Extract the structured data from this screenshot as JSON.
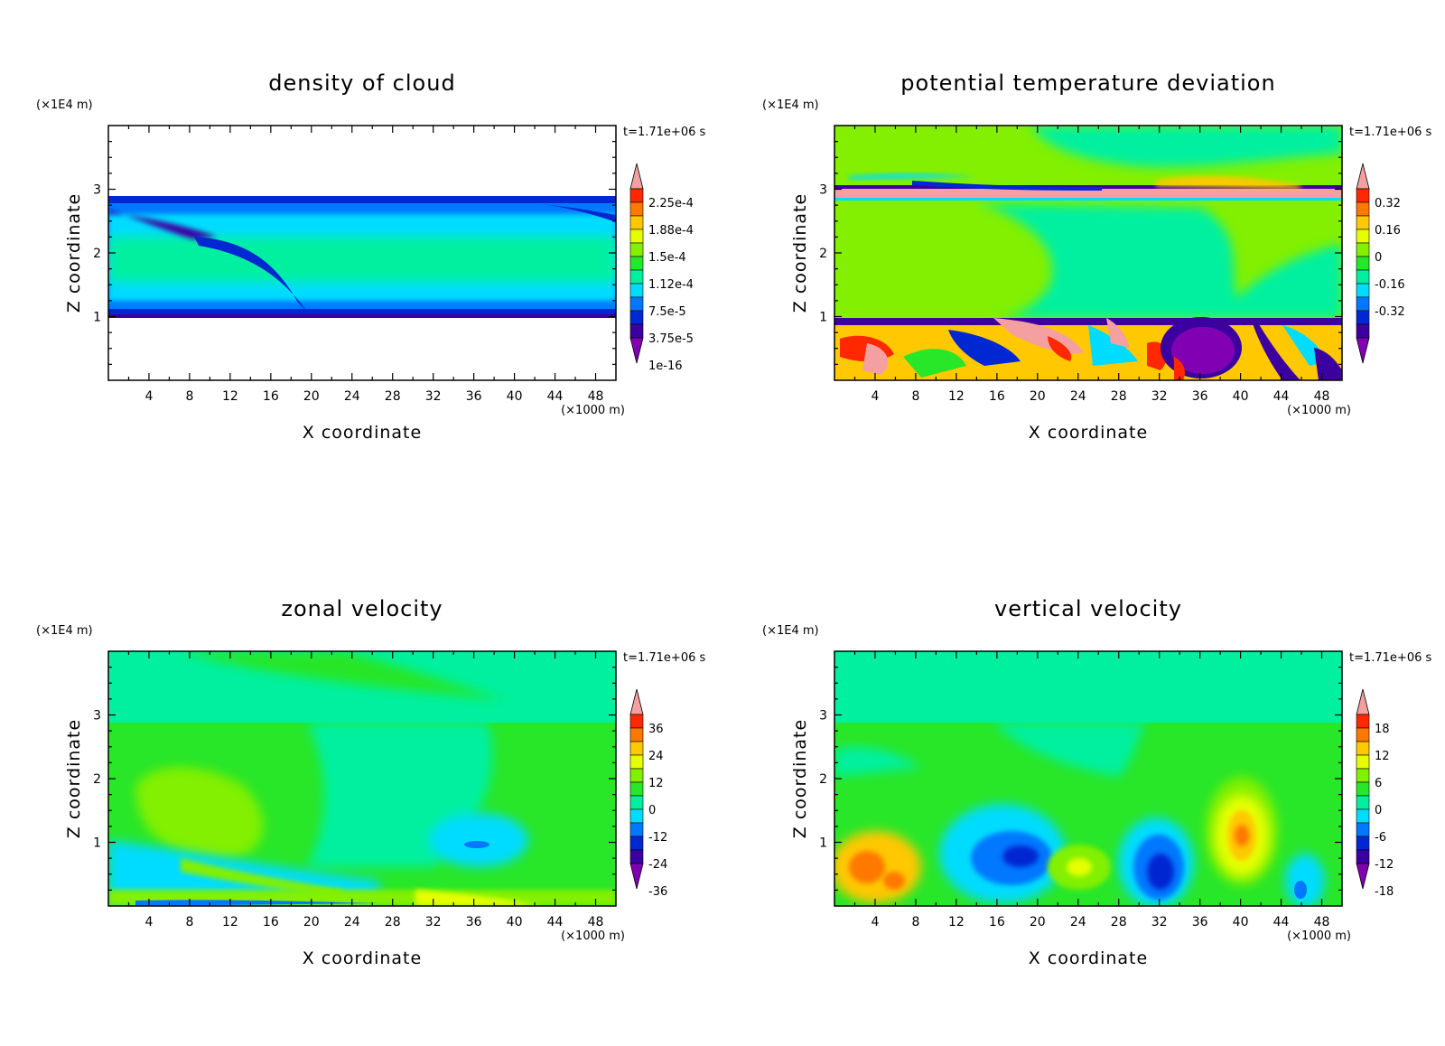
{
  "chart_data": [
    {
      "type": "heatmap",
      "title": "density of cloud",
      "xlabel": "X coordinate",
      "ylabel": "Z coordinate",
      "x_unit": "(×1000 m)",
      "y_unit": "(×1E4 m)",
      "time_label": "t=1.71e+06 s",
      "xlim": [
        0,
        50
      ],
      "ylim": [
        0,
        4
      ],
      "x_ticks": [
        "4",
        "8",
        "12",
        "16",
        "20",
        "24",
        "28",
        "32",
        "36",
        "40",
        "44",
        "48"
      ],
      "y_ticks": [
        "1",
        "2",
        "3"
      ],
      "colorbar_labels": [
        "2.25e-4",
        "1.88e-4",
        "1.5e-4",
        "1.12e-4",
        "7.5e-5",
        "3.75e-5",
        "1e-16"
      ]
    },
    {
      "type": "heatmap",
      "title": "potential temperature deviation",
      "xlabel": "X coordinate",
      "ylabel": "Z coordinate",
      "x_unit": "(×1000 m)",
      "y_unit": "(×1E4 m)",
      "time_label": "t=1.71e+06 s",
      "xlim": [
        0,
        50
      ],
      "ylim": [
        0,
        4
      ],
      "x_ticks": [
        "4",
        "8",
        "12",
        "16",
        "20",
        "24",
        "28",
        "32",
        "36",
        "40",
        "44",
        "48"
      ],
      "y_ticks": [
        "1",
        "2",
        "3"
      ],
      "colorbar_labels": [
        "0.32",
        "0.16",
        "0",
        "-0.16",
        "-0.32"
      ]
    },
    {
      "type": "heatmap",
      "title": "zonal velocity",
      "xlabel": "X coordinate",
      "ylabel": "Z coordinate",
      "x_unit": "(×1000 m)",
      "y_unit": "(×1E4 m)",
      "time_label": "t=1.71e+06 s",
      "xlim": [
        0,
        50
      ],
      "ylim": [
        0,
        4
      ],
      "x_ticks": [
        "4",
        "8",
        "12",
        "16",
        "20",
        "24",
        "28",
        "32",
        "36",
        "40",
        "44",
        "48"
      ],
      "y_ticks": [
        "1",
        "2",
        "3"
      ],
      "colorbar_labels": [
        "36",
        "24",
        "12",
        "0",
        "-12",
        "-24",
        "-36"
      ]
    },
    {
      "type": "heatmap",
      "title": "vertical velocity",
      "xlabel": "X coordinate",
      "ylabel": "Z coordinate",
      "x_unit": "(×1000 m)",
      "y_unit": "(×1E4 m)",
      "time_label": "t=1.71e+06 s",
      "xlim": [
        0,
        50
      ],
      "ylim": [
        0,
        4
      ],
      "x_ticks": [
        "4",
        "8",
        "12",
        "16",
        "20",
        "24",
        "28",
        "32",
        "36",
        "40",
        "44",
        "48"
      ],
      "y_ticks": [
        "1",
        "2",
        "3"
      ],
      "colorbar_labels": [
        "18",
        "12",
        "6",
        "0",
        "-6",
        "-12",
        "-18"
      ]
    }
  ],
  "colors": {
    "scale": [
      "#8200b4",
      "#3c00a0",
      "#0028d2",
      "#0078ff",
      "#00dcff",
      "#00f0a0",
      "#28e628",
      "#82f000",
      "#e6ff00",
      "#ffc800",
      "#ff7800",
      "#ff2800",
      "#f5a0a0"
    ],
    "axis": "#000000"
  }
}
